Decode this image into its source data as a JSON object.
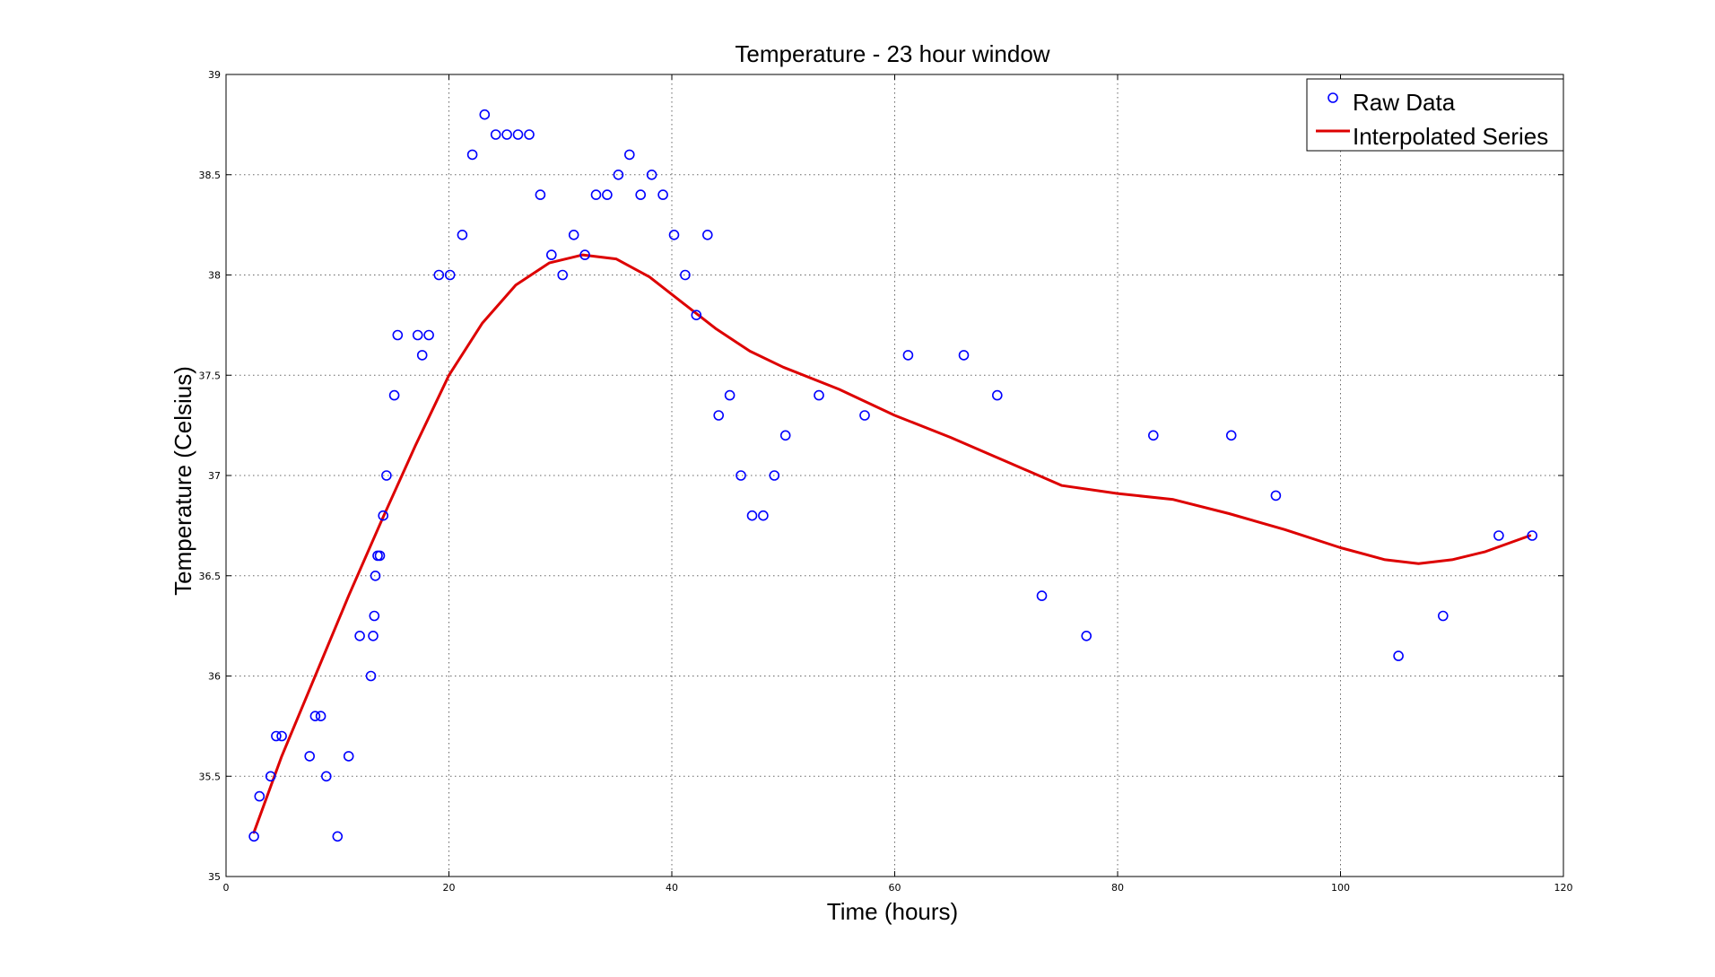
{
  "chart_data": {
    "type": "scatter",
    "title": "Temperature - 23 hour window",
    "xlabel": "Time (hours)",
    "ylabel": "Temperature (Celsius)",
    "xlim": [
      0,
      120
    ],
    "ylim": [
      35,
      39
    ],
    "xticks": [
      0,
      20,
      40,
      60,
      80,
      100,
      120
    ],
    "yticks": [
      35,
      35.5,
      36,
      36.5,
      37,
      37.5,
      38,
      38.5,
      39
    ],
    "grid": true,
    "legend_position": "top-right",
    "colors": {
      "raw": "#0000ff",
      "interp": "#dd0000"
    },
    "series": [
      {
        "name": "Raw Data",
        "kind": "markers",
        "points": [
          [
            2.5,
            35.2
          ],
          [
            3,
            35.4
          ],
          [
            4,
            35.5
          ],
          [
            4.5,
            35.7
          ],
          [
            5,
            35.7
          ],
          [
            7.5,
            35.6
          ],
          [
            8,
            35.8
          ],
          [
            8.5,
            35.8
          ],
          [
            9,
            35.5
          ],
          [
            10,
            35.2
          ],
          [
            11,
            35.6
          ],
          [
            12,
            36.2
          ],
          [
            13,
            36.0
          ],
          [
            13.2,
            36.2
          ],
          [
            13.3,
            36.3
          ],
          [
            13.4,
            36.5
          ],
          [
            13.6,
            36.6
          ],
          [
            13.8,
            36.6
          ],
          [
            14.1,
            36.8
          ],
          [
            14.4,
            37.0
          ],
          [
            15.1,
            37.4
          ],
          [
            15.4,
            37.7
          ],
          [
            17.2,
            37.7
          ],
          [
            17.6,
            37.6
          ],
          [
            18.2,
            37.7
          ],
          [
            19.1,
            38.0
          ],
          [
            20.1,
            38.0
          ],
          [
            21.2,
            38.2
          ],
          [
            22.1,
            38.6
          ],
          [
            23.2,
            38.8
          ],
          [
            24.2,
            38.7
          ],
          [
            25.2,
            38.7
          ],
          [
            26.2,
            38.7
          ],
          [
            27.2,
            38.7
          ],
          [
            28.2,
            38.4
          ],
          [
            29.2,
            38.1
          ],
          [
            30.2,
            38.0
          ],
          [
            31.2,
            38.2
          ],
          [
            32.2,
            38.1
          ],
          [
            33.2,
            38.4
          ],
          [
            34.2,
            38.4
          ],
          [
            35.2,
            38.5
          ],
          [
            36.2,
            38.6
          ],
          [
            37.2,
            38.4
          ],
          [
            38.2,
            38.5
          ],
          [
            39.2,
            38.4
          ],
          [
            40.2,
            38.2
          ],
          [
            41.2,
            38.0
          ],
          [
            42.2,
            37.8
          ],
          [
            43.2,
            38.2
          ],
          [
            44.2,
            37.3
          ],
          [
            45.2,
            37.4
          ],
          [
            46.2,
            37.0
          ],
          [
            47.2,
            36.8
          ],
          [
            48.2,
            36.8
          ],
          [
            49.2,
            37.0
          ],
          [
            50.2,
            37.2
          ],
          [
            53.2,
            37.4
          ],
          [
            57.3,
            37.3
          ],
          [
            61.2,
            37.6
          ],
          [
            66.2,
            37.6
          ],
          [
            69.2,
            37.4
          ],
          [
            73.2,
            36.4
          ],
          [
            77.2,
            36.2
          ],
          [
            83.2,
            37.2
          ],
          [
            90.2,
            37.2
          ],
          [
            94.2,
            36.9
          ],
          [
            105.2,
            36.1
          ],
          [
            109.2,
            36.3
          ],
          [
            114.2,
            36.7
          ],
          [
            117.2,
            36.7
          ]
        ]
      },
      {
        "name": "Interpolated Series",
        "kind": "line",
        "points": [
          [
            2.5,
            35.22
          ],
          [
            5,
            35.6
          ],
          [
            8,
            36.0
          ],
          [
            11,
            36.4
          ],
          [
            14,
            36.78
          ],
          [
            17,
            37.15
          ],
          [
            20,
            37.5
          ],
          [
            23,
            37.76
          ],
          [
            26,
            37.95
          ],
          [
            29,
            38.06
          ],
          [
            32,
            38.1
          ],
          [
            35,
            38.08
          ],
          [
            38,
            37.99
          ],
          [
            41,
            37.86
          ],
          [
            44,
            37.73
          ],
          [
            47,
            37.62
          ],
          [
            50,
            37.54
          ],
          [
            55,
            37.43
          ],
          [
            60,
            37.3
          ],
          [
            65,
            37.19
          ],
          [
            70,
            37.07
          ],
          [
            75,
            36.95
          ],
          [
            80,
            36.91
          ],
          [
            85,
            36.88
          ],
          [
            90,
            36.81
          ],
          [
            95,
            36.73
          ],
          [
            100,
            36.64
          ],
          [
            104,
            36.58
          ],
          [
            107,
            36.56
          ],
          [
            110,
            36.58
          ],
          [
            113,
            36.62
          ],
          [
            117,
            36.7
          ]
        ]
      }
    ]
  }
}
